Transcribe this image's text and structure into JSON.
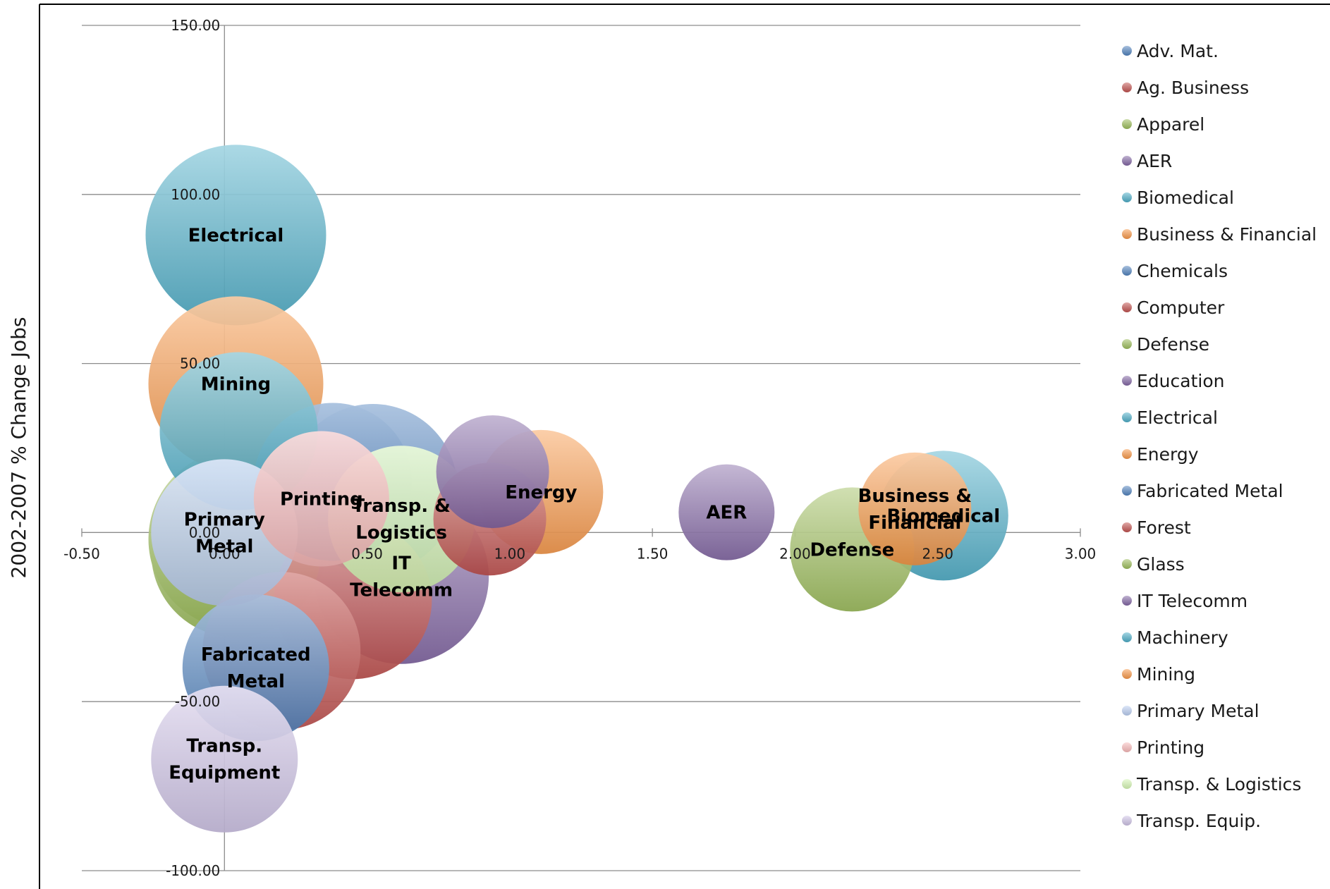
{
  "chart_data": {
    "type": "bubble",
    "title": "",
    "xlabel": "",
    "ylabel": "2002-2007 % Change Jobs",
    "xlim": [
      -0.5,
      3.0
    ],
    "ylim": [
      -100,
      150
    ],
    "x_ticks": [
      "-0.50",
      "0.00",
      "0.50",
      "1.00",
      "1.50",
      "2.00",
      "2.50",
      "3.00"
    ],
    "y_ticks": [
      "150.00",
      "100.00",
      "50.00",
      "0.00",
      "-50.00",
      "-100.00"
    ],
    "grid": "horizontal",
    "legend_position": "right",
    "legend": [
      "Adv. Mat.",
      "Ag. Business",
      "Apparel",
      "AER",
      "Biomedical",
      "Business & Financial",
      "Chemicals",
      "Computer",
      "Defense",
      "Education",
      "Electrical",
      "Energy",
      "Fabricated Metal",
      "Forest",
      "Glass",
      "IT Telecomm",
      "Machinery",
      "Mining",
      "Primary Metal",
      "Printing",
      "Transp. & Logistics",
      "Transp. Equip."
    ],
    "series": [
      {
        "name": "Adv. Mat.",
        "x": 0.52,
        "y": 13,
        "size": 30,
        "color": "#4f81bd",
        "label": ""
      },
      {
        "name": "Ag. Business",
        "x": 0.45,
        "y": -20,
        "size": 28,
        "color": "#c0504d",
        "label": ""
      },
      {
        "name": "Apparel",
        "x": 0.05,
        "y": -2,
        "size": 32,
        "color": "#9bbb59",
        "label": ""
      },
      {
        "name": "AER",
        "x": 1.76,
        "y": 6,
        "size": 17,
        "color": "#8064a2",
        "label": "AER"
      },
      {
        "name": "Biomedical",
        "x": 2.52,
        "y": 5,
        "size": 23,
        "color": "#4bacc6",
        "label": "Biomedical"
      },
      {
        "name": "Business & Financial",
        "x": 2.42,
        "y": 7,
        "size": 20,
        "color": "#f79646",
        "label": "Business & Financial"
      },
      {
        "name": "Chemicals",
        "x": 0.38,
        "y": 15,
        "size": 28,
        "color": "#4f81bd",
        "label": ""
      },
      {
        "name": "Computer",
        "x": 0.93,
        "y": 4,
        "size": 20,
        "color": "#c0504d",
        "label": ""
      },
      {
        "name": "Defense",
        "x": 2.2,
        "y": -5,
        "size": 22,
        "color": "#9bbb59",
        "label": "Defense"
      },
      {
        "name": "Education",
        "x": 0.94,
        "y": 18,
        "size": 20,
        "color": "#8064a2",
        "label": ""
      },
      {
        "name": "Electrical",
        "x": 0.04,
        "y": 88,
        "size": 32,
        "color": "#4bacc6",
        "label": "Electrical"
      },
      {
        "name": "Energy",
        "x": 1.11,
        "y": 12,
        "size": 22,
        "color": "#f79646",
        "label": "Energy"
      },
      {
        "name": "Fabricated Metal",
        "x": 0.11,
        "y": -40,
        "size": 26,
        "color": "#4f81bd",
        "label": "Fabricated Metal"
      },
      {
        "name": "Forest",
        "x": 0.2,
        "y": -35,
        "size": 28,
        "color": "#c0504d",
        "label": ""
      },
      {
        "name": "Glass",
        "x": 0.04,
        "y": -6,
        "size": 30,
        "color": "#9bbb59",
        "label": ""
      },
      {
        "name": "IT Telecomm",
        "x": 0.62,
        "y": -13,
        "size": 31,
        "color": "#8064a2",
        "label": "IT Telecomm"
      },
      {
        "name": "Machinery",
        "x": 0.05,
        "y": 30,
        "size": 28,
        "color": "#4bacc6",
        "label": ""
      },
      {
        "name": "Mining",
        "x": 0.04,
        "y": 44,
        "size": 31,
        "color": "#f79646",
        "label": "Mining"
      },
      {
        "name": "Primary Metal",
        "x": 0.0,
        "y": 0,
        "size": 26,
        "color": "#b9cdf0",
        "label": "Primary Metal"
      },
      {
        "name": "Printing",
        "x": 0.34,
        "y": 10,
        "size": 24,
        "color": "#f7b8b8",
        "label": "Printing"
      },
      {
        "name": "Transp. & Logistics",
        "x": 0.62,
        "y": 4,
        "size": 26,
        "color": "#d5f5b3",
        "label": "Transp. & Logistics"
      },
      {
        "name": "Transp. Equip.",
        "x": 0.0,
        "y": -67,
        "size": 26,
        "color": "#cdc1e4",
        "label": "Transp. Equipment"
      }
    ]
  }
}
